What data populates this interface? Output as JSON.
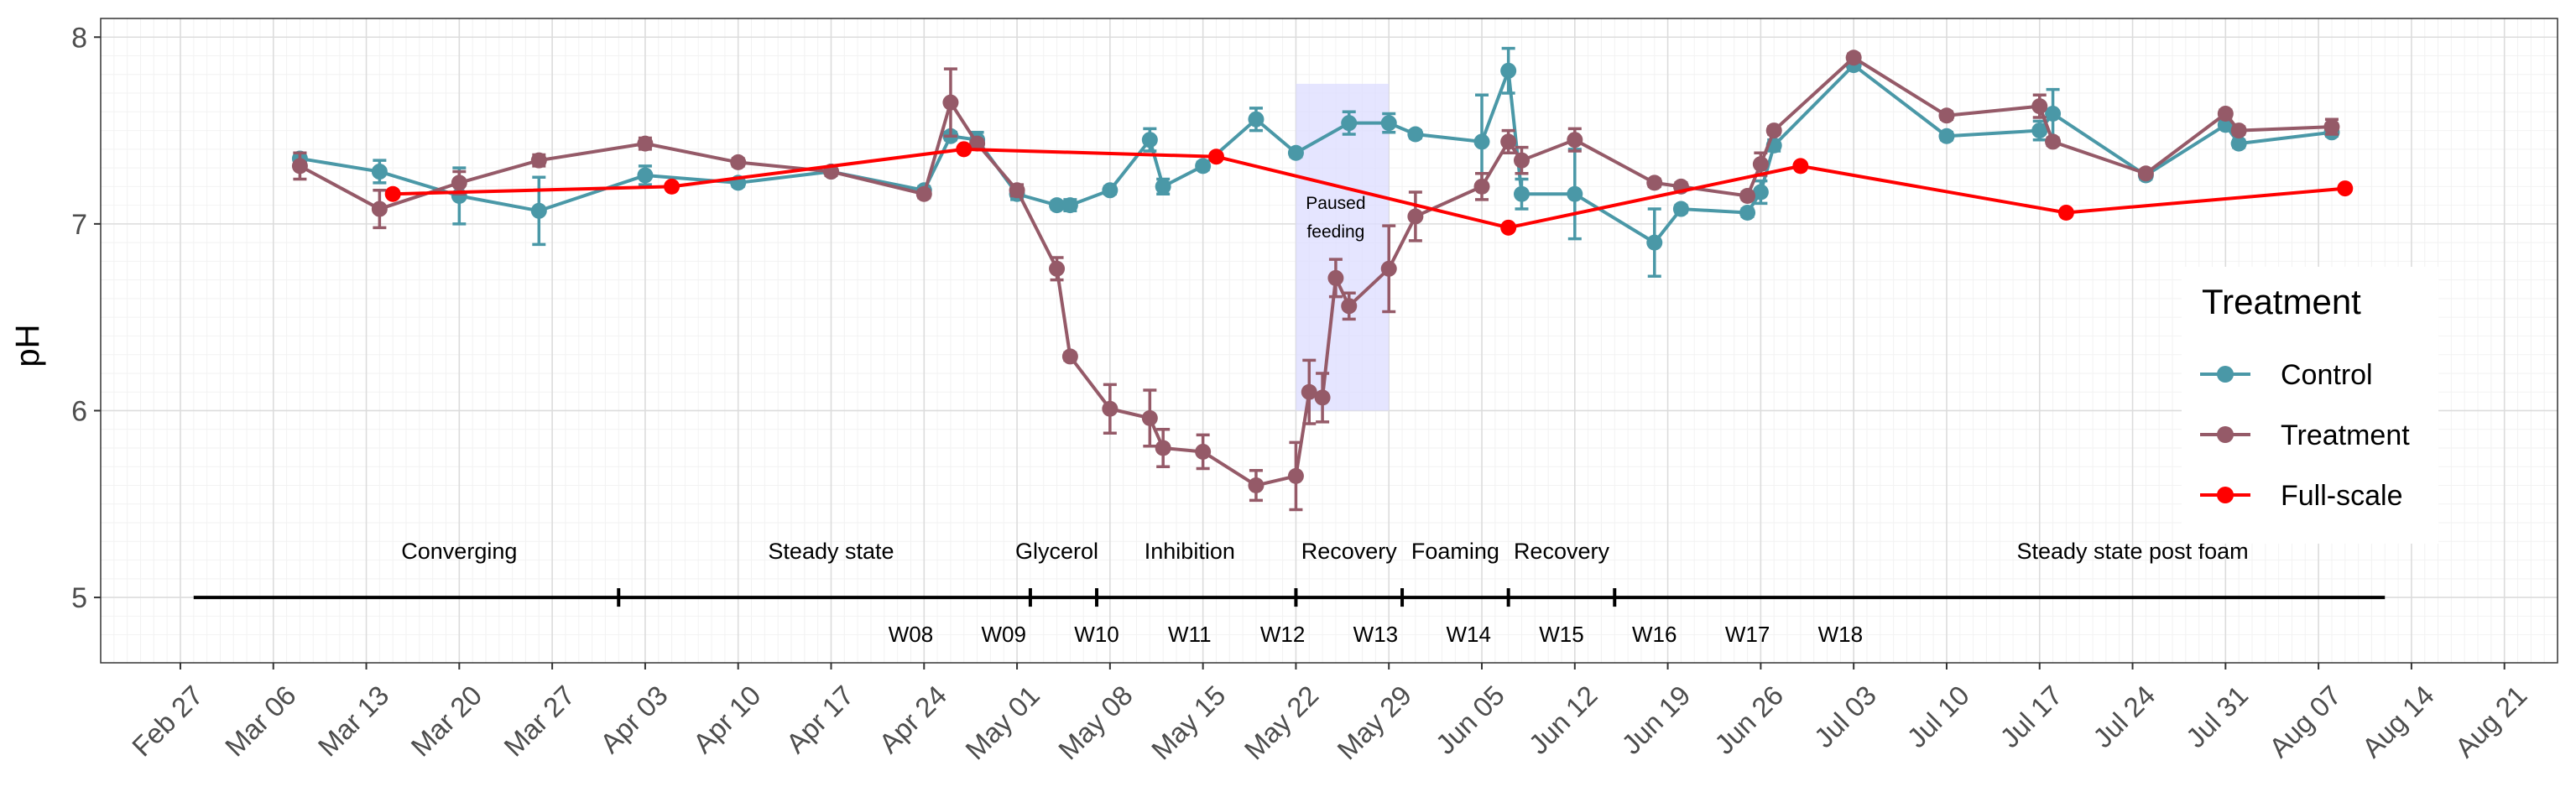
{
  "chart_data": {
    "type": "line",
    "title": "",
    "xlabel": "",
    "ylabel": "pH",
    "ylim": [
      4.65,
      8.1
    ],
    "xlim": [
      "2022-02-21",
      "2022-08-25"
    ],
    "grid": true,
    "y_ticks": [
      5,
      6,
      7,
      8
    ],
    "x_ticks": [
      {
        "date": "2022-02-27",
        "label": "Feb 27"
      },
      {
        "date": "2022-03-06",
        "label": "Mar 06"
      },
      {
        "date": "2022-03-13",
        "label": "Mar 13"
      },
      {
        "date": "2022-03-20",
        "label": "Mar 20"
      },
      {
        "date": "2022-03-27",
        "label": "Mar 27"
      },
      {
        "date": "2022-04-03",
        "label": "Apr 03"
      },
      {
        "date": "2022-04-10",
        "label": "Apr 10"
      },
      {
        "date": "2022-04-17",
        "label": "Apr 17"
      },
      {
        "date": "2022-04-24",
        "label": "Apr 24"
      },
      {
        "date": "2022-05-01",
        "label": "May 01"
      },
      {
        "date": "2022-05-08",
        "label": "May 08"
      },
      {
        "date": "2022-05-15",
        "label": "May 15"
      },
      {
        "date": "2022-05-22",
        "label": "May 22"
      },
      {
        "date": "2022-05-29",
        "label": "May 29"
      },
      {
        "date": "2022-06-05",
        "label": "Jun 05"
      },
      {
        "date": "2022-06-12",
        "label": "Jun 12"
      },
      {
        "date": "2022-06-19",
        "label": "Jun 19"
      },
      {
        "date": "2022-06-26",
        "label": "Jun 26"
      },
      {
        "date": "2022-07-03",
        "label": "Jul 03"
      },
      {
        "date": "2022-07-10",
        "label": "Jul 10"
      },
      {
        "date": "2022-07-17",
        "label": "Jul 17"
      },
      {
        "date": "2022-07-24",
        "label": "Jul 24"
      },
      {
        "date": "2022-07-31",
        "label": "Jul 31"
      },
      {
        "date": "2022-08-07",
        "label": "Aug 07"
      },
      {
        "date": "2022-08-14",
        "label": "Aug 14"
      },
      {
        "date": "2022-08-21",
        "label": "Aug 21"
      }
    ],
    "legend": {
      "title": "Treatment",
      "position": "right",
      "entries": [
        {
          "name": "Control",
          "color": "#4a98a7"
        },
        {
          "name": "Treatment",
          "color": "#955a68"
        },
        {
          "name": "Full-scale",
          "color": "#ff0000"
        }
      ]
    },
    "series": [
      {
        "name": "Control",
        "color": "#4a98a7",
        "points": [
          {
            "x": "2022-03-08",
            "y": 7.35,
            "err": 0.03
          },
          {
            "x": "2022-03-14",
            "y": 7.28,
            "err": 0.06
          },
          {
            "x": "2022-03-20",
            "y": 7.15,
            "err": 0.15
          },
          {
            "x": "2022-03-26",
            "y": 7.07,
            "err": 0.18
          },
          {
            "x": "2022-04-03",
            "y": 7.26,
            "err": 0.05
          },
          {
            "x": "2022-04-10",
            "y": 7.22,
            "err": 0.02
          },
          {
            "x": "2022-04-17",
            "y": 7.28,
            "err": 0.02
          },
          {
            "x": "2022-04-24",
            "y": 7.18,
            "err": 0.02
          },
          {
            "x": "2022-04-26",
            "y": 7.47,
            "err": 0.02
          },
          {
            "x": "2022-04-28",
            "y": 7.45,
            "err": 0.04
          },
          {
            "x": "2022-05-01",
            "y": 7.16,
            "err": 0.03
          },
          {
            "x": "2022-05-04",
            "y": 7.1,
            "err": 0.02
          },
          {
            "x": "2022-05-05",
            "y": 7.1,
            "err": 0.03
          },
          {
            "x": "2022-05-08",
            "y": 7.18,
            "err": 0.02
          },
          {
            "x": "2022-05-11",
            "y": 7.45,
            "err": 0.06
          },
          {
            "x": "2022-05-12",
            "y": 7.2,
            "err": 0.04
          },
          {
            "x": "2022-05-15",
            "y": 7.31,
            "err": 0.02
          },
          {
            "x": "2022-05-19",
            "y": 7.56,
            "err": 0.06
          },
          {
            "x": "2022-05-22",
            "y": 7.38,
            "err": 0.02
          },
          {
            "x": "2022-05-26",
            "y": 7.54,
            "err": 0.06
          },
          {
            "x": "2022-05-29",
            "y": 7.54,
            "err": 0.05
          },
          {
            "x": "2022-05-31",
            "y": 7.48,
            "err": 0.02
          },
          {
            "x": "2022-06-05",
            "y": 7.44,
            "err": 0.25
          },
          {
            "x": "2022-06-07",
            "y": 7.82,
            "err": 0.12
          },
          {
            "x": "2022-06-08",
            "y": 7.16,
            "err": 0.08
          },
          {
            "x": "2022-06-12",
            "y": 7.16,
            "err": 0.24
          },
          {
            "x": "2022-06-18",
            "y": 6.9,
            "err": 0.18
          },
          {
            "x": "2022-06-20",
            "y": 7.08,
            "err": 0.02
          },
          {
            "x": "2022-06-25",
            "y": 7.06,
            "err": 0.02
          },
          {
            "x": "2022-06-26",
            "y": 7.17,
            "err": 0.06
          },
          {
            "x": "2022-06-27",
            "y": 7.42,
            "err": 0.03
          },
          {
            "x": "2022-07-03",
            "y": 7.85,
            "err": 0.02
          },
          {
            "x": "2022-07-10",
            "y": 7.47,
            "err": 0.02
          },
          {
            "x": "2022-07-17",
            "y": 7.5,
            "err": 0.05
          },
          {
            "x": "2022-07-18",
            "y": 7.59,
            "err": 0.13
          },
          {
            "x": "2022-07-25",
            "y": 7.26,
            "err": 0.02
          },
          {
            "x": "2022-07-31",
            "y": 7.53,
            "err": 0.02
          },
          {
            "x": "2022-08-01",
            "y": 7.43,
            "err": 0.02
          },
          {
            "x": "2022-08-08",
            "y": 7.49,
            "err": 0.02
          }
        ]
      },
      {
        "name": "Treatment",
        "color": "#955a68",
        "points": [
          {
            "x": "2022-03-08",
            "y": 7.31,
            "err": 0.07
          },
          {
            "x": "2022-03-14",
            "y": 7.08,
            "err": 0.1
          },
          {
            "x": "2022-03-20",
            "y": 7.22,
            "err": 0.06
          },
          {
            "x": "2022-03-26",
            "y": 7.34,
            "err": 0.03
          },
          {
            "x": "2022-04-03",
            "y": 7.43,
            "err": 0.03
          },
          {
            "x": "2022-04-10",
            "y": 7.33,
            "err": 0.02
          },
          {
            "x": "2022-04-17",
            "y": 7.28,
            "err": 0.02
          },
          {
            "x": "2022-04-24",
            "y": 7.16,
            "err": 0.02
          },
          {
            "x": "2022-04-26",
            "y": 7.65,
            "err": 0.18
          },
          {
            "x": "2022-04-28",
            "y": 7.43,
            "err": 0.02
          },
          {
            "x": "2022-05-01",
            "y": 7.18,
            "err": 0.03
          },
          {
            "x": "2022-05-04",
            "y": 6.76,
            "err": 0.06
          },
          {
            "x": "2022-05-05",
            "y": 6.29,
            "err": 0.02
          },
          {
            "x": "2022-05-08",
            "y": 6.01,
            "err": 0.13
          },
          {
            "x": "2022-05-11",
            "y": 5.96,
            "err": 0.15
          },
          {
            "x": "2022-05-12",
            "y": 5.8,
            "err": 0.1
          },
          {
            "x": "2022-05-15",
            "y": 5.78,
            "err": 0.09
          },
          {
            "x": "2022-05-19",
            "y": 5.6,
            "err": 0.08
          },
          {
            "x": "2022-05-22",
            "y": 5.65,
            "err": 0.18
          },
          {
            "x": "2022-05-23",
            "y": 6.1,
            "err": 0.17
          },
          {
            "x": "2022-05-24",
            "y": 6.07,
            "err": 0.13
          },
          {
            "x": "2022-05-25",
            "y": 6.71,
            "err": 0.1
          },
          {
            "x": "2022-05-26",
            "y": 6.56,
            "err": 0.07
          },
          {
            "x": "2022-05-29",
            "y": 6.76,
            "err": 0.23
          },
          {
            "x": "2022-05-31",
            "y": 7.04,
            "err": 0.13
          },
          {
            "x": "2022-06-05",
            "y": 7.2,
            "err": 0.07
          },
          {
            "x": "2022-06-07",
            "y": 7.44,
            "err": 0.06
          },
          {
            "x": "2022-06-08",
            "y": 7.34,
            "err": 0.07
          },
          {
            "x": "2022-06-12",
            "y": 7.45,
            "err": 0.06
          },
          {
            "x": "2022-06-18",
            "y": 7.22,
            "err": 0.02
          },
          {
            "x": "2022-06-20",
            "y": 7.2,
            "err": 0.02
          },
          {
            "x": "2022-06-25",
            "y": 7.15,
            "err": 0.02
          },
          {
            "x": "2022-06-26",
            "y": 7.32,
            "err": 0.06
          },
          {
            "x": "2022-06-27",
            "y": 7.5,
            "err": 0.02
          },
          {
            "x": "2022-07-03",
            "y": 7.89,
            "err": 0.02
          },
          {
            "x": "2022-07-10",
            "y": 7.58,
            "err": 0.02
          },
          {
            "x": "2022-07-17",
            "y": 7.63,
            "err": 0.06
          },
          {
            "x": "2022-07-18",
            "y": 7.44,
            "err": 0.02
          },
          {
            "x": "2022-07-25",
            "y": 7.27,
            "err": 0.02
          },
          {
            "x": "2022-07-31",
            "y": 7.59,
            "err": 0.02
          },
          {
            "x": "2022-08-01",
            "y": 7.5,
            "err": 0.02
          },
          {
            "x": "2022-08-08",
            "y": 7.52,
            "err": 0.04
          }
        ]
      },
      {
        "name": "Full-scale",
        "color": "#ff0000",
        "points": [
          {
            "x": "2022-03-15",
            "y": 7.16
          },
          {
            "x": "2022-04-05",
            "y": 7.2
          },
          {
            "x": "2022-04-27",
            "y": 7.4
          },
          {
            "x": "2022-05-16",
            "y": 7.36
          },
          {
            "x": "2022-06-07",
            "y": 6.98
          },
          {
            "x": "2022-06-29",
            "y": 7.31
          },
          {
            "x": "2022-07-19",
            "y": 7.06
          },
          {
            "x": "2022-08-09",
            "y": 7.19
          }
        ]
      }
    ],
    "shaded_region": {
      "x_start": "2022-05-22",
      "x_end": "2022-05-29",
      "y_start": 6.0,
      "y_end": 7.75,
      "color": "#dcdcff"
    },
    "annotations": [
      {
        "x": "2022-05-25",
        "y": 7.08,
        "text": [
          "Paused",
          "feeding"
        ]
      }
    ],
    "timeline": {
      "y": 5,
      "start": "2022-02-28",
      "end": "2022-08-12",
      "ticks": [
        "2022-04-01",
        "2022-05-02",
        "2022-05-07",
        "2022-05-22",
        "2022-05-30",
        "2022-06-07",
        "2022-06-15"
      ],
      "phases": [
        {
          "label": "Converging",
          "x": "2022-03-20"
        },
        {
          "label": "Steady state",
          "x": "2022-04-17"
        },
        {
          "label": "Glycerol",
          "x": "2022-05-04"
        },
        {
          "label": "Inhibition",
          "x": "2022-05-14"
        },
        {
          "label": "Recovery",
          "x": "2022-05-26"
        },
        {
          "label": "Foaming",
          "x": "2022-06-03"
        },
        {
          "label": "Recovery",
          "x": "2022-06-11"
        },
        {
          "label": "Steady state post foam",
          "x": "2022-07-24"
        }
      ],
      "weeks": [
        {
          "label": "W08",
          "x": "2022-04-23"
        },
        {
          "label": "W09",
          "x": "2022-04-30"
        },
        {
          "label": "W10",
          "x": "2022-05-07"
        },
        {
          "label": "W11",
          "x": "2022-05-14"
        },
        {
          "label": "W12",
          "x": "2022-05-21"
        },
        {
          "label": "W13",
          "x": "2022-05-28"
        },
        {
          "label": "W14",
          "x": "2022-06-04"
        },
        {
          "label": "W15",
          "x": "2022-06-11"
        },
        {
          "label": "W16",
          "x": "2022-06-18"
        },
        {
          "label": "W17",
          "x": "2022-06-25"
        },
        {
          "label": "W18",
          "x": "2022-07-02"
        }
      ]
    }
  }
}
